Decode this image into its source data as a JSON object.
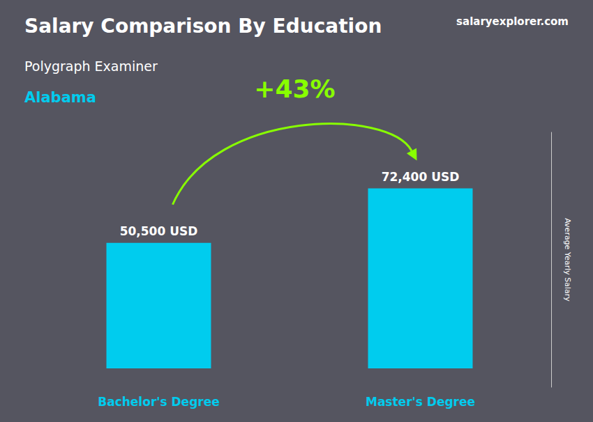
{
  "chart_data": {
    "type": "bar",
    "title": "Salary Comparison By Education",
    "subtitle": "Polygraph Examiner",
    "annotations": [
      "Alabama",
      "+43%",
      "salaryexplorer.com"
    ],
    "ylabel": "Average Yearly Salary",
    "categories": [
      "Bachelor's Degree",
      "Master's Degree"
    ],
    "values": [
      50500,
      72400
    ],
    "value_labels": [
      "50,500 USD",
      "72,400 USD"
    ],
    "data_labels": true,
    "color": "#00ccee",
    "ylim": [
      -7600,
      95000
    ],
    "yticks": [],
    "tick_labels": "x",
    "grid": false
  }
}
